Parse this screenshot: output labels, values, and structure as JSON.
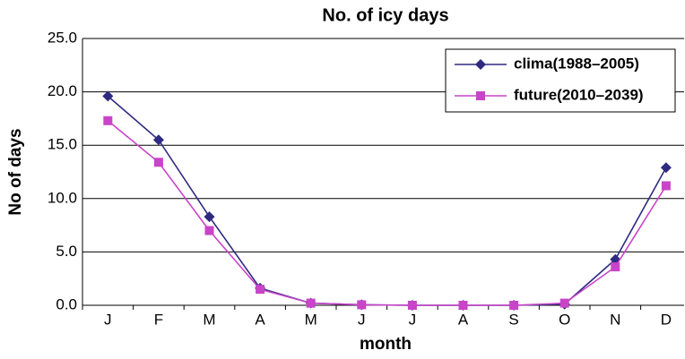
{
  "chart_data": {
    "type": "line",
    "title": "No. of icy days",
    "x_label": "month",
    "y_label": "No of days",
    "categories": [
      "J",
      "F",
      "M",
      "A",
      "M",
      "J",
      "J",
      "A",
      "S",
      "O",
      "N",
      "D"
    ],
    "series": [
      {
        "name": "clima(1988–2005)",
        "color": "#2e2a80",
        "marker": "diamond",
        "values": [
          19.6,
          15.5,
          8.3,
          1.6,
          0.2,
          0.05,
          0.0,
          0.0,
          0.0,
          0.1,
          4.3,
          12.9
        ]
      },
      {
        "name": "future(2010–2039)",
        "color": "#c844c8",
        "marker": "square",
        "values": [
          17.3,
          13.4,
          7.0,
          1.5,
          0.2,
          0.05,
          0.0,
          0.0,
          0.0,
          0.2,
          3.6,
          11.2
        ]
      }
    ],
    "ylim": [
      0,
      25
    ],
    "yticks": [
      {
        "value": 0,
        "label": "0.0"
      },
      {
        "value": 5,
        "label": "5.0"
      },
      {
        "value": 10,
        "label": "10.0"
      },
      {
        "value": 15,
        "label": "15.0"
      },
      {
        "value": 20,
        "label": "20.0"
      },
      {
        "value": 25,
        "label": "25.0"
      }
    ],
    "grid": true,
    "legend": "upper right"
  }
}
